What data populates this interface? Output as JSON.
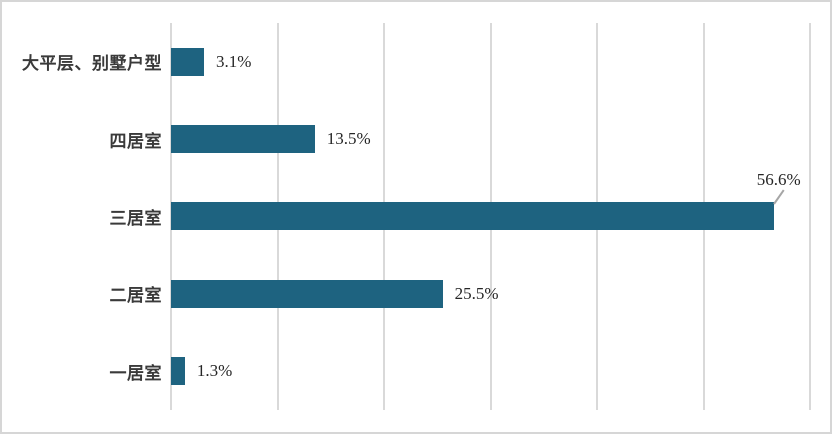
{
  "frame": {
    "background": "#ffffff",
    "border_color": "#d6d6d6"
  },
  "chart_data": {
    "type": "bar",
    "orientation": "horizontal",
    "title": "",
    "xlabel": "",
    "ylabel": "",
    "categories": [
      "大平层、别墅户型",
      "四居室",
      "三居室",
      "二居室",
      "一居室"
    ],
    "values": [
      3.1,
      13.5,
      56.6,
      25.5,
      1.3
    ],
    "value_labels": [
      "3.1%",
      "13.5%",
      "56.6%",
      "25.5%",
      "1.3%"
    ],
    "callout_index": 2,
    "xlim": [
      0,
      60
    ],
    "grid_step": 10,
    "grid": true,
    "legend": false,
    "tick_labels_visible": false,
    "bar_color": "#1e6380",
    "gridline_color": "#d9d9d9",
    "category_color": "#3a3a3a",
    "value_color": "#262626",
    "leader_color": "#a6a6a6"
  }
}
